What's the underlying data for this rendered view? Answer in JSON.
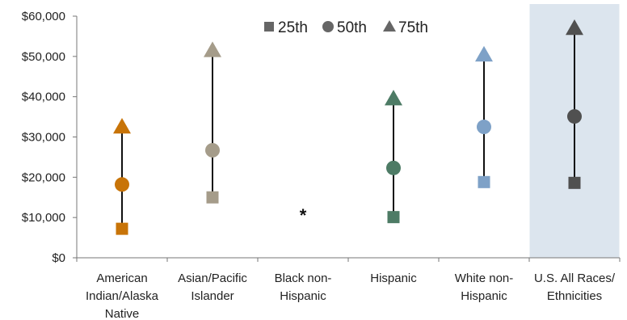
{
  "chart_data": {
    "type": "scatter",
    "ylim": [
      0,
      60000
    ],
    "y_ticks": [
      0,
      10000,
      20000,
      30000,
      40000,
      50000,
      60000
    ],
    "y_tick_labels": [
      "$0",
      "$10,000",
      "$20,000",
      "$30,000",
      "$40,000",
      "$50,000",
      "$60,000"
    ],
    "legend_position": "top-center",
    "legend": [
      {
        "name": "25th",
        "marker": "square"
      },
      {
        "name": "50th",
        "marker": "circle"
      },
      {
        "name": "75th",
        "marker": "triangle"
      }
    ],
    "categories": [
      {
        "label_lines": [
          "American",
          "Indian/Alaska",
          "Native"
        ],
        "color": "#C87408",
        "p25": 7200,
        "p50": 18200,
        "p75": 32500
      },
      {
        "label_lines": [
          "Asian/Pacific",
          "Islander"
        ],
        "color": "#A59C8A",
        "p25": 15000,
        "p50": 26700,
        "p75": 51500
      },
      {
        "label_lines": [
          "Black non-",
          "Hispanic"
        ],
        "color": "#222222",
        "suppressed": true,
        "note": "*"
      },
      {
        "label_lines": [
          "Hispanic"
        ],
        "color": "#4D7B65",
        "p25": 10100,
        "p50": 22300,
        "p75": 39500
      },
      {
        "label_lines": [
          "White non-",
          "Hispanic"
        ],
        "color": "#7EA1C7",
        "p25": 18800,
        "p50": 32500,
        "p75": 50400
      },
      {
        "label_lines": [
          "U.S. All Races/",
          "Ethnicities"
        ],
        "color": "#505050",
        "p25": 18600,
        "p50": 35100,
        "p75": 57000,
        "highlight": true,
        "highlight_color": "#DCE5EE"
      }
    ]
  }
}
